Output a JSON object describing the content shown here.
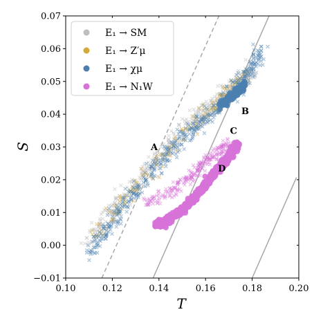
{
  "chart_data": {
    "type": "scatter",
    "xlabel": "T",
    "ylabel": "S",
    "xlim": [
      0.1,
      0.2
    ],
    "ylim": [
      -0.01,
      0.07
    ],
    "xticks": [
      "0.10",
      "0.12",
      "0.14",
      "0.16",
      "0.18",
      "0.20"
    ],
    "yticks": [
      "−0.01",
      "0.00",
      "0.01",
      "0.02",
      "0.03",
      "0.04",
      "0.05",
      "0.06",
      "0.07"
    ],
    "grid": false,
    "legend_position": "top-left",
    "series": [
      {
        "name": "E₁ → SM",
        "color": "#bdbdbd"
      },
      {
        "name": "E₁ → Z′μ",
        "color": "#d4a93a"
      },
      {
        "name": "E₁ → χμ",
        "color": "#4a7fb0"
      },
      {
        "name": "E₁ → N₁W",
        "color": "#d672d8"
      }
    ],
    "reference_lines": [
      {
        "style": "dashed",
        "color": "#a8a8a8",
        "from": [
          0.1155,
          -0.01
        ],
        "to": [
          0.166,
          0.0704
        ]
      },
      {
        "style": "solid",
        "color": "#a8a8a8",
        "from": [
          0.1375,
          -0.01
        ],
        "to": [
          0.1875,
          0.0704
        ]
      },
      {
        "style": "solid",
        "color": "#a8a8a8",
        "from": [
          0.18,
          -0.01
        ],
        "to": [
          0.199,
          0.0207
        ]
      }
    ],
    "annotations": [
      {
        "text": "A",
        "x": 0.138,
        "y": 0.029
      },
      {
        "text": "B",
        "x": 0.177,
        "y": 0.04
      },
      {
        "text": "C",
        "x": 0.172,
        "y": 0.034
      },
      {
        "text": "D",
        "x": 0.167,
        "y": 0.0225
      }
    ],
    "clusters": [
      {
        "series": 0,
        "marker": "x",
        "count": 420,
        "spread": 0.0045,
        "points": [
          [
            0.11,
            0.002
          ],
          [
            0.125,
            0.015
          ],
          [
            0.14,
            0.027
          ],
          [
            0.155,
            0.038
          ],
          [
            0.17,
            0.047
          ],
          [
            0.18,
            0.054
          ]
        ]
      },
      {
        "series": 1,
        "marker": "x",
        "count": 160,
        "spread": 0.004,
        "points": [
          [
            0.112,
            0.003
          ],
          [
            0.13,
            0.018
          ],
          [
            0.15,
            0.033
          ],
          [
            0.165,
            0.043
          ],
          [
            0.177,
            0.051
          ]
        ]
      },
      {
        "series": 2,
        "marker": "x",
        "count": 480,
        "spread": 0.004,
        "points": [
          [
            0.11,
            -0.002
          ],
          [
            0.125,
            0.012
          ],
          [
            0.14,
            0.025
          ],
          [
            0.155,
            0.036
          ],
          [
            0.168,
            0.044
          ],
          [
            0.177,
            0.051
          ],
          [
            0.184,
            0.059
          ]
        ]
      },
      {
        "series": 2,
        "marker": "circle",
        "count": 90,
        "spread": 0.0018,
        "points": [
          [
            0.166,
            0.042
          ],
          [
            0.172,
            0.046
          ],
          [
            0.177,
            0.049
          ]
        ]
      },
      {
        "series": 3,
        "marker": "x",
        "count": 220,
        "spread": 0.003,
        "points": [
          [
            0.135,
            0.013
          ],
          [
            0.145,
            0.016
          ],
          [
            0.155,
            0.022
          ],
          [
            0.163,
            0.027
          ],
          [
            0.17,
            0.031
          ]
        ]
      },
      {
        "series": 3,
        "marker": "circle",
        "count": 700,
        "spread": 0.0016,
        "points": [
          [
            0.139,
            0.006
          ],
          [
            0.145,
            0.008
          ],
          [
            0.152,
            0.012
          ],
          [
            0.158,
            0.017
          ],
          [
            0.164,
            0.022
          ],
          [
            0.17,
            0.027
          ],
          [
            0.174,
            0.031
          ]
        ]
      }
    ]
  }
}
